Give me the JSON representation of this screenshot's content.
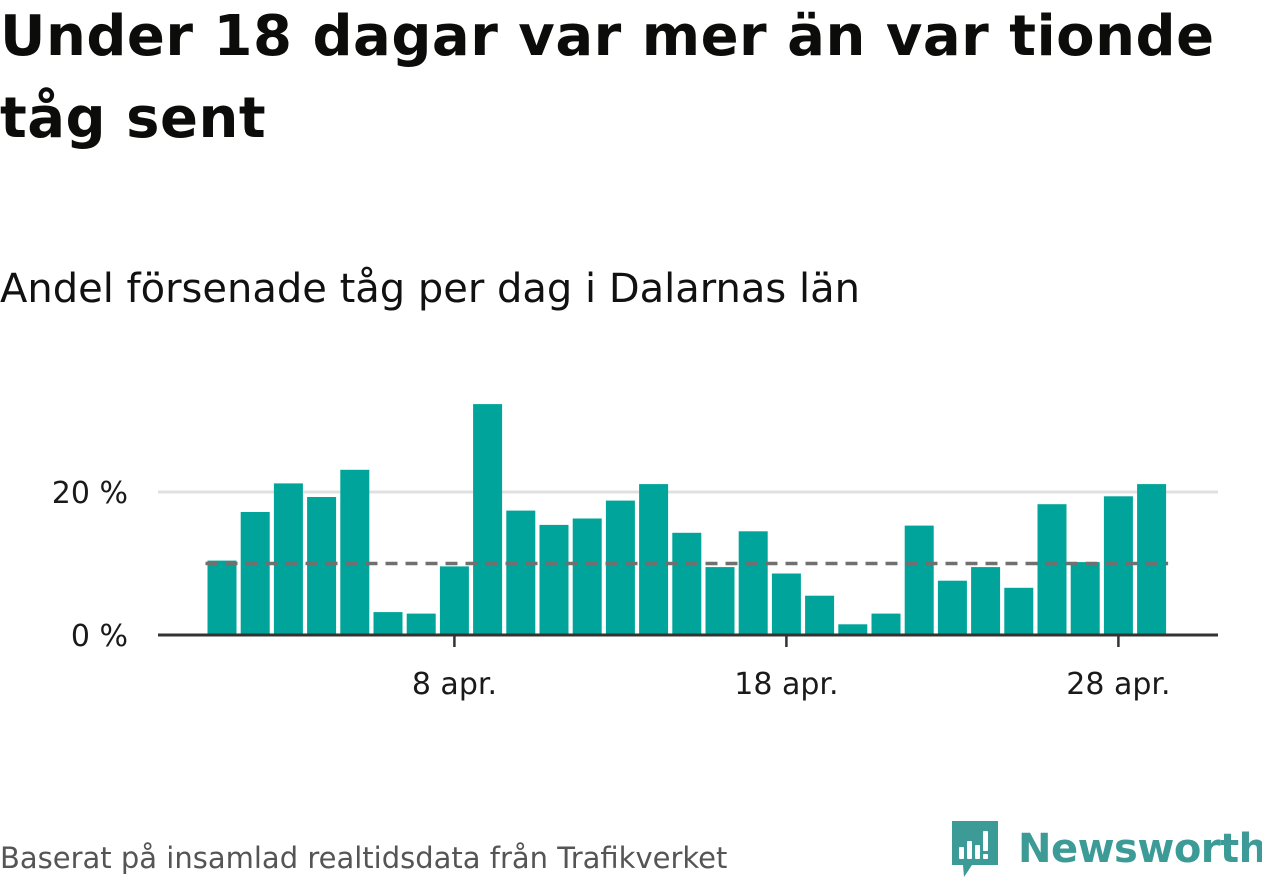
{
  "title": "Under 18 dagar var mer än var tionde tåg sent",
  "subtitle": "Andel försenade tåg per dag i Dalarnas län",
  "source": "Baserat på insamlad realtidsdata från Trafikverket",
  "brand": {
    "name": "Newsworthy",
    "icon": "newsworthy-logo-icon",
    "color": "#3c9b96"
  },
  "colors": {
    "bar": "#00a49a",
    "reference_line": "#707070",
    "grid": "#e0e0e0",
    "axis": "#333333"
  },
  "chart_data": {
    "type": "bar",
    "x_unit": "day of April",
    "x": [
      1,
      2,
      3,
      4,
      5,
      6,
      7,
      8,
      9,
      10,
      11,
      12,
      13,
      14,
      15,
      16,
      17,
      18,
      19,
      20,
      21,
      22,
      23,
      24,
      25,
      26,
      27,
      28,
      29
    ],
    "values": [
      10.4,
      17.2,
      21.2,
      19.3,
      23.1,
      3.2,
      3.0,
      9.6,
      32.3,
      17.4,
      15.4,
      16.3,
      18.8,
      21.1,
      14.3,
      9.5,
      14.5,
      8.6,
      5.5,
      1.5,
      3.0,
      15.3,
      7.6,
      9.5,
      6.6,
      18.3,
      10.2,
      19.4,
      21.1
    ],
    "reference_line": 10,
    "ylim": [
      0,
      33
    ],
    "yticks": [
      0,
      20
    ],
    "ytick_labels": [
      "0 %",
      "20 %"
    ],
    "xticks": [
      8,
      18,
      28
    ],
    "xtick_labels": [
      "8 apr.",
      "18 apr.",
      "28 apr."
    ],
    "grid": true,
    "legend": "none"
  }
}
